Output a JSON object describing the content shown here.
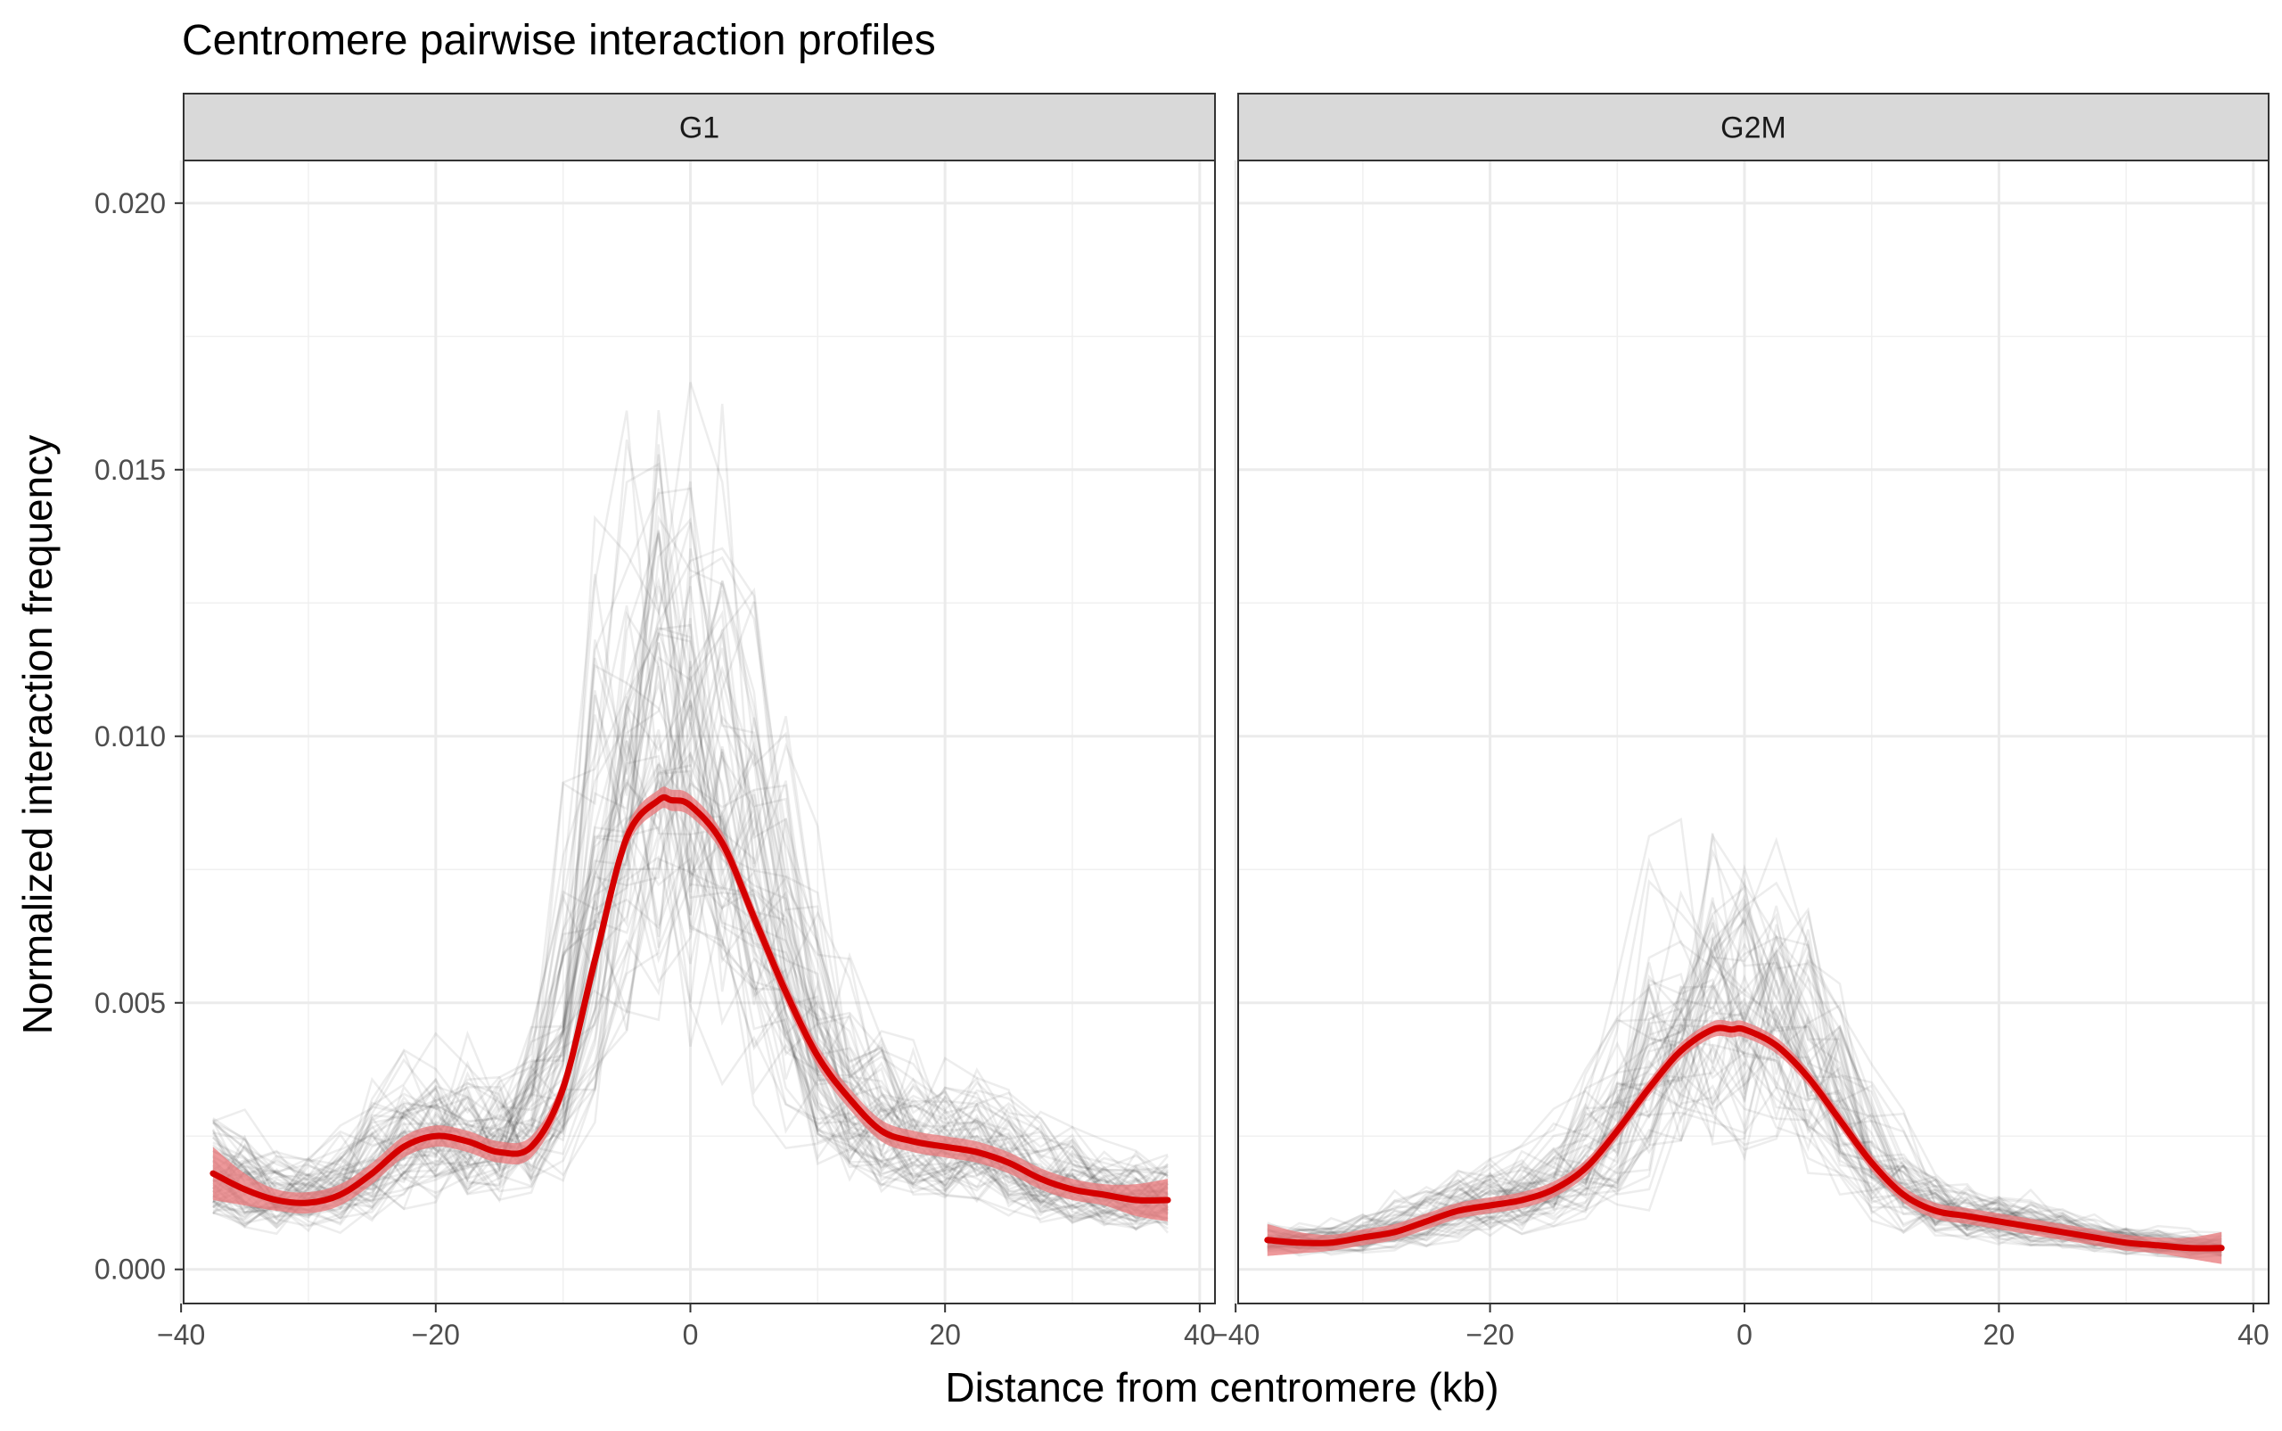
{
  "chart_data": {
    "type": "line",
    "title": "Centromere pairwise interaction profiles",
    "xlabel": "Distance from centromere (kb)",
    "ylabel": "Normalized interaction frequency",
    "xlim": [
      -40,
      40
    ],
    "ylim": [
      0,
      0.02
    ],
    "x_ticks": [
      -40,
      -20,
      0,
      20,
      40
    ],
    "x_tick_labels": [
      "−40",
      "−20",
      "0",
      "20",
      "40"
    ],
    "y_ticks": [
      0.0,
      0.005,
      0.01,
      0.015,
      0.02
    ],
    "y_tick_labels": [
      "0.000",
      "0.005",
      "0.010",
      "0.015",
      "0.020"
    ],
    "grid": true,
    "colors": {
      "smooth_line": "#d40000",
      "smooth_band": "#e8777a",
      "traces": "#333333",
      "strip": "#d9d9d9"
    },
    "panels": [
      {
        "label": "G1",
        "smooth": {
          "name": "",
          "x": [
            -37.5,
            -35,
            -32.5,
            -30,
            -27.5,
            -25,
            -22.5,
            -20,
            -17.5,
            -15,
            -12.5,
            -10,
            -7.5,
            -5,
            -2.5,
            -1.5,
            0,
            2.5,
            5,
            7.5,
            10,
            12.5,
            15,
            17.5,
            20,
            22.5,
            25,
            27.5,
            30,
            32.5,
            35,
            37.5
          ],
          "y": [
            0.0018,
            0.0015,
            0.0013,
            0.00125,
            0.0014,
            0.0018,
            0.0023,
            0.0025,
            0.0024,
            0.0022,
            0.0023,
            0.0034,
            0.0058,
            0.0081,
            0.0088,
            0.0088,
            0.0087,
            0.008,
            0.0066,
            0.0052,
            0.004,
            0.0032,
            0.0026,
            0.0024,
            0.0023,
            0.0022,
            0.002,
            0.0017,
            0.0015,
            0.0014,
            0.0013,
            0.0013
          ],
          "band_halfwidth": [
            0.0005,
            0.0003,
            0.0002,
            0.0002,
            0.0002,
            0.0002,
            0.0002,
            0.0002,
            0.0002,
            0.0002,
            0.0002,
            0.0002,
            0.0002,
            0.0002,
            0.0002,
            0.0002,
            0.0002,
            0.0002,
            0.0002,
            0.0002,
            0.0002,
            0.0002,
            0.0002,
            0.0002,
            0.0002,
            0.0002,
            0.0002,
            0.0002,
            0.0002,
            0.0002,
            0.0003,
            0.0004
          ]
        },
        "trace_count": 70
      },
      {
        "label": "G2M",
        "smooth": {
          "name": "",
          "x": [
            -37.5,
            -35,
            -32.5,
            -30,
            -27.5,
            -25,
            -22.5,
            -20,
            -17.5,
            -15,
            -12.5,
            -10,
            -7.5,
            -5,
            -2.5,
            -1,
            0,
            2.5,
            5,
            7.5,
            10,
            12.5,
            15,
            17.5,
            20,
            22.5,
            25,
            27.5,
            30,
            32.5,
            35,
            37.5
          ],
          "y": [
            0.00055,
            0.0005,
            0.0005,
            0.0006,
            0.0007,
            0.0009,
            0.0011,
            0.0012,
            0.0013,
            0.0015,
            0.0019,
            0.0026,
            0.0034,
            0.0041,
            0.0045,
            0.0045,
            0.0045,
            0.0042,
            0.0036,
            0.0028,
            0.002,
            0.0014,
            0.0011,
            0.001,
            0.0009,
            0.0008,
            0.0007,
            0.0006,
            0.0005,
            0.00045,
            0.0004,
            0.0004
          ],
          "band_halfwidth": [
            0.0003,
            0.0002,
            0.00015,
            0.00015,
            0.00015,
            0.00015,
            0.00015,
            0.00015,
            0.00015,
            0.00015,
            0.00015,
            0.00015,
            0.00015,
            0.00015,
            0.00015,
            0.00015,
            0.00015,
            0.00015,
            0.00015,
            0.00015,
            0.00015,
            0.00015,
            0.00015,
            0.00015,
            0.00015,
            0.00015,
            0.00015,
            0.00015,
            0.00015,
            0.00015,
            0.0002,
            0.0003
          ]
        },
        "trace_count": 60
      }
    ]
  }
}
